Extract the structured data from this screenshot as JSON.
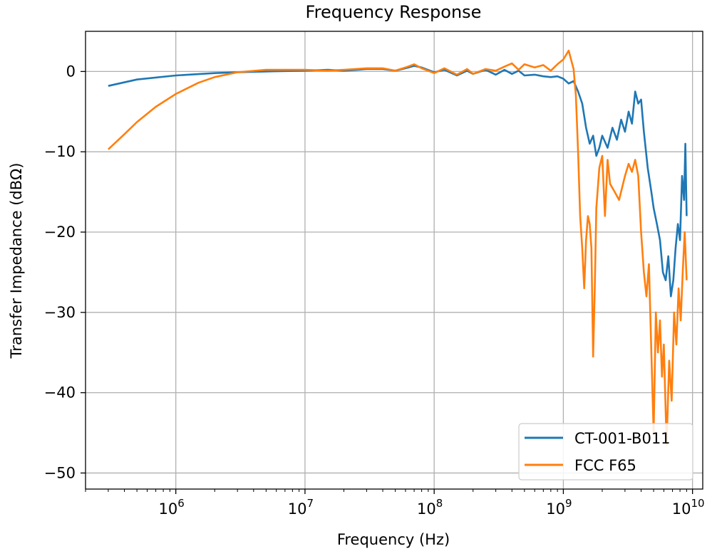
{
  "chart_data": {
    "type": "line",
    "title": "Frequency Response",
    "xlabel": "Frequency (Hz)",
    "ylabel": "Transfer Impedance (dBΩ)",
    "x_scale": "log",
    "x_unit": "Hz",
    "xlim": [
      200000,
      12000000000
    ],
    "ylim": [
      -52,
      5
    ],
    "grid": true,
    "legend_position": "lower right",
    "x_ticks": [
      {
        "value": 1000000,
        "base": "10",
        "exp": "6"
      },
      {
        "value": 10000000,
        "base": "10",
        "exp": "7"
      },
      {
        "value": 100000000,
        "base": "10",
        "exp": "8"
      },
      {
        "value": 1000000000,
        "base": "10",
        "exp": "9"
      },
      {
        "value": 10000000000,
        "base": "10",
        "exp": "10"
      }
    ],
    "y_ticks": [
      {
        "value": 0,
        "label": "0"
      },
      {
        "value": -10,
        "label": "−10"
      },
      {
        "value": -20,
        "label": "−20"
      },
      {
        "value": -30,
        "label": "−30"
      },
      {
        "value": -40,
        "label": "−40"
      },
      {
        "value": -50,
        "label": "−50"
      }
    ],
    "series": [
      {
        "name": "CT-001-B011",
        "color": "#1f77b4",
        "points": [
          [
            300000,
            -1.8
          ],
          [
            500000,
            -1.0
          ],
          [
            1000000,
            -0.5
          ],
          [
            2000000,
            -0.2
          ],
          [
            3000000,
            -0.1
          ],
          [
            5000000,
            0.0
          ],
          [
            10000000,
            0.1
          ],
          [
            15000000,
            0.2
          ],
          [
            20000000,
            0.1
          ],
          [
            30000000,
            0.3
          ],
          [
            40000000,
            0.3
          ],
          [
            50000000,
            0.1
          ],
          [
            60000000,
            0.4
          ],
          [
            70000000,
            0.7
          ],
          [
            80000000,
            0.5
          ],
          [
            100000000,
            -0.1
          ],
          [
            120000000,
            0.2
          ],
          [
            150000000,
            -0.5
          ],
          [
            180000000,
            0.1
          ],
          [
            200000000,
            -0.3
          ],
          [
            250000000,
            0.2
          ],
          [
            300000000,
            -0.4
          ],
          [
            350000000,
            0.2
          ],
          [
            400000000,
            -0.3
          ],
          [
            450000000,
            0.1
          ],
          [
            500000000,
            -0.5
          ],
          [
            600000000,
            -0.4
          ],
          [
            700000000,
            -0.6
          ],
          [
            800000000,
            -0.7
          ],
          [
            900000000,
            -0.6
          ],
          [
            1000000000,
            -0.9
          ],
          [
            1100000000,
            -1.5
          ],
          [
            1200000000,
            -1.2
          ],
          [
            1300000000,
            -2.5
          ],
          [
            1400000000,
            -4.0
          ],
          [
            1500000000,
            -7.0
          ],
          [
            1600000000,
            -9.0
          ],
          [
            1700000000,
            -8.0
          ],
          [
            1800000000,
            -10.5
          ],
          [
            1900000000,
            -9.5
          ],
          [
            2000000000,
            -8.0
          ],
          [
            2200000000,
            -9.5
          ],
          [
            2400000000,
            -7.0
          ],
          [
            2600000000,
            -8.5
          ],
          [
            2800000000,
            -6.0
          ],
          [
            3000000000,
            -7.5
          ],
          [
            3200000000,
            -5.0
          ],
          [
            3400000000,
            -6.5
          ],
          [
            3600000000,
            -2.5
          ],
          [
            3800000000,
            -4.0
          ],
          [
            4000000000,
            -3.5
          ],
          [
            4200000000,
            -7.5
          ],
          [
            4500000000,
            -12.0
          ],
          [
            4800000000,
            -15.0
          ],
          [
            5000000000,
            -17.0
          ],
          [
            5300000000,
            -19.0
          ],
          [
            5600000000,
            -21.0
          ],
          [
            5900000000,
            -25.0
          ],
          [
            6200000000,
            -26.0
          ],
          [
            6500000000,
            -23.0
          ],
          [
            6800000000,
            -28.0
          ],
          [
            7100000000,
            -26.0
          ],
          [
            7400000000,
            -22.0
          ],
          [
            7700000000,
            -19.0
          ],
          [
            8000000000,
            -21.0
          ],
          [
            8300000000,
            -13.0
          ],
          [
            8600000000,
            -16.0
          ],
          [
            8800000000,
            -9.0
          ],
          [
            9000000000,
            -18.0
          ]
        ]
      },
      {
        "name": "FCC F65",
        "color": "#ff7f0e",
        "points": [
          [
            300000,
            -9.7
          ],
          [
            400000,
            -7.8
          ],
          [
            500000,
            -6.3
          ],
          [
            700000,
            -4.4
          ],
          [
            1000000,
            -2.8
          ],
          [
            1500000,
            -1.4
          ],
          [
            2000000,
            -0.7
          ],
          [
            3000000,
            -0.1
          ],
          [
            5000000,
            0.2
          ],
          [
            10000000,
            0.2
          ],
          [
            15000000,
            0.1
          ],
          [
            20000000,
            0.2
          ],
          [
            30000000,
            0.4
          ],
          [
            40000000,
            0.4
          ],
          [
            50000000,
            0.1
          ],
          [
            60000000,
            0.5
          ],
          [
            70000000,
            0.9
          ],
          [
            80000000,
            0.4
          ],
          [
            100000000,
            -0.2
          ],
          [
            120000000,
            0.4
          ],
          [
            150000000,
            -0.4
          ],
          [
            180000000,
            0.3
          ],
          [
            200000000,
            -0.3
          ],
          [
            250000000,
            0.3
          ],
          [
            300000000,
            0.1
          ],
          [
            350000000,
            0.6
          ],
          [
            400000000,
            1.0
          ],
          [
            450000000,
            0.2
          ],
          [
            500000000,
            0.9
          ],
          [
            600000000,
            0.5
          ],
          [
            700000000,
            0.8
          ],
          [
            800000000,
            0.1
          ],
          [
            900000000,
            0.9
          ],
          [
            1000000000,
            1.5
          ],
          [
            1100000000,
            2.6
          ],
          [
            1200000000,
            0.3
          ],
          [
            1250000000,
            -3.0
          ],
          [
            1300000000,
            -10.0
          ],
          [
            1350000000,
            -18.0
          ],
          [
            1400000000,
            -22.0
          ],
          [
            1450000000,
            -27.0
          ],
          [
            1500000000,
            -21.0
          ],
          [
            1550000000,
            -18.0
          ],
          [
            1600000000,
            -19.0
          ],
          [
            1650000000,
            -22.0
          ],
          [
            1700000000,
            -35.5
          ],
          [
            1750000000,
            -27.0
          ],
          [
            1800000000,
            -17.0
          ],
          [
            1900000000,
            -12.0
          ],
          [
            2000000000,
            -10.5
          ],
          [
            2100000000,
            -18.0
          ],
          [
            2200000000,
            -11.0
          ],
          [
            2300000000,
            -14.0
          ],
          [
            2500000000,
            -15.0
          ],
          [
            2700000000,
            -16.0
          ],
          [
            3000000000,
            -13.0
          ],
          [
            3200000000,
            -11.5
          ],
          [
            3400000000,
            -12.5
          ],
          [
            3600000000,
            -11.0
          ],
          [
            3800000000,
            -13.0
          ],
          [
            4000000000,
            -20.0
          ],
          [
            4200000000,
            -25.0
          ],
          [
            4400000000,
            -28.0
          ],
          [
            4600000000,
            -24.0
          ],
          [
            4800000000,
            -35.0
          ],
          [
            5000000000,
            -45.0
          ],
          [
            5200000000,
            -30.0
          ],
          [
            5400000000,
            -35.0
          ],
          [
            5600000000,
            -31.0
          ],
          [
            5800000000,
            -38.0
          ],
          [
            6000000000,
            -34.0
          ],
          [
            6300000000,
            -46.5
          ],
          [
            6600000000,
            -36.0
          ],
          [
            6900000000,
            -41.0
          ],
          [
            7200000000,
            -30.0
          ],
          [
            7500000000,
            -34.0
          ],
          [
            7800000000,
            -27.0
          ],
          [
            8100000000,
            -31.0
          ],
          [
            8400000000,
            -25.0
          ],
          [
            8700000000,
            -20.0
          ],
          [
            9000000000,
            -26.0
          ]
        ]
      }
    ]
  }
}
